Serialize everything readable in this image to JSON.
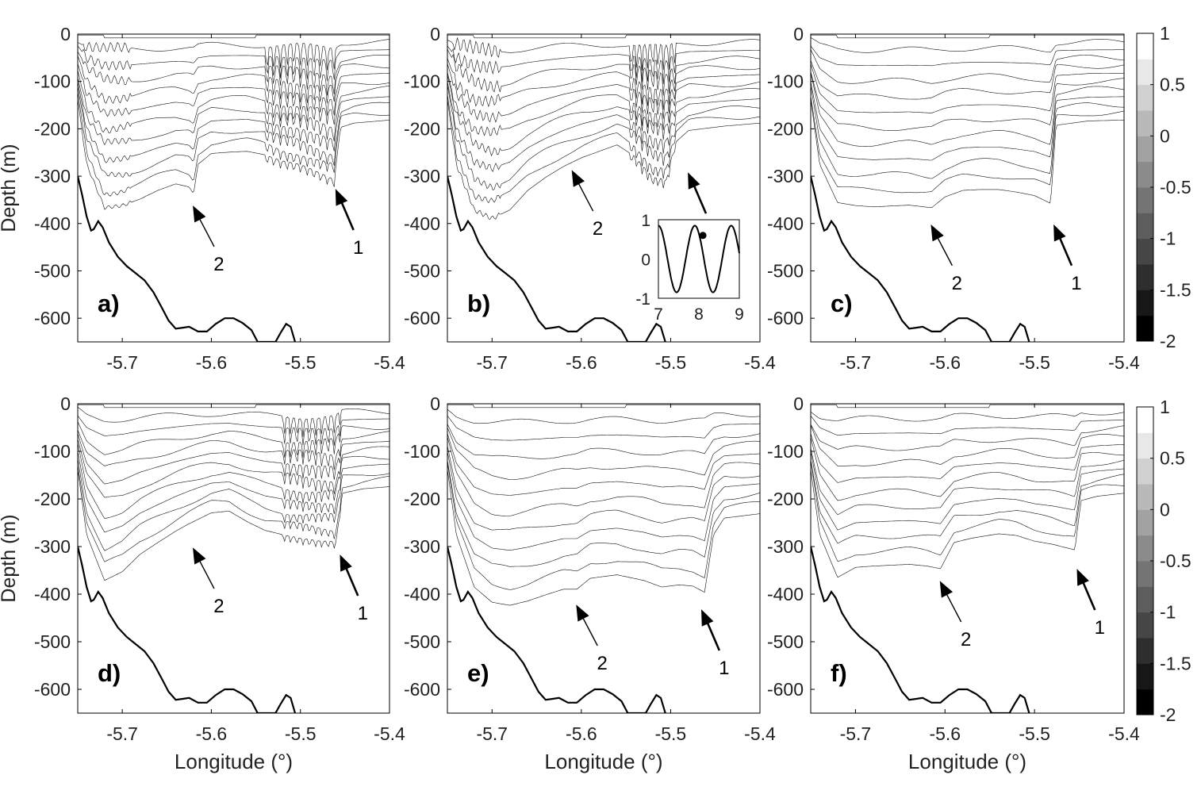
{
  "chart_data": [
    {
      "type": "heatmap",
      "panel_label": "a)",
      "xlabel": "",
      "ylabel": "Depth (m)",
      "xlim": [
        -5.75,
        -5.4
      ],
      "ylim": [
        -650,
        0
      ],
      "x_ticks": [
        "-5.7",
        "-5.6",
        "-5.5",
        "-5.4"
      ],
      "y_ticks": [
        "0",
        "-100",
        "-200",
        "-300",
        "-400",
        "-500",
        "-600"
      ],
      "annotations": [
        {
          "text": "2",
          "x": -5.62,
          "y": -365
        },
        {
          "text": "1",
          "x": -5.46,
          "y": -330
        }
      ]
    },
    {
      "type": "heatmap",
      "panel_label": "b)",
      "xlabel": "",
      "ylabel": "",
      "xlim": [
        -5.75,
        -5.4
      ],
      "ylim": [
        -650,
        0
      ],
      "x_ticks": [
        "-5.7",
        "-5.6",
        "-5.5",
        "-5.4"
      ],
      "y_ticks": [
        "0",
        "-100",
        "-200",
        "-300",
        "-400",
        "-500",
        "-600"
      ],
      "annotations": [
        {
          "text": "2",
          "x": -5.61,
          "y": -290
        },
        {
          "text": "1",
          "x": -5.48,
          "y": -295
        }
      ],
      "inset": {
        "type": "line",
        "x_ticks": [
          "7",
          "8",
          "9"
        ],
        "y_ticks": [
          "1",
          "0",
          "-1"
        ],
        "xlim": [
          7,
          9
        ],
        "ylim": [
          -1,
          1
        ],
        "marker": {
          "x": 8.1,
          "y": 0.6
        }
      }
    },
    {
      "type": "heatmap",
      "panel_label": "c)",
      "xlabel": "",
      "ylabel": "",
      "xlim": [
        -5.75,
        -5.4
      ],
      "ylim": [
        -650,
        0
      ],
      "x_ticks": [
        "-5.7",
        "-5.6",
        "-5.5",
        "-5.4"
      ],
      "y_ticks": [
        "0",
        "-100",
        "-200",
        "-300",
        "-400",
        "-500",
        "-600"
      ],
      "annotations": [
        {
          "text": "2",
          "x": -5.615,
          "y": -405
        },
        {
          "text": "1",
          "x": -5.478,
          "y": -405
        }
      ]
    },
    {
      "type": "heatmap",
      "panel_label": "d)",
      "xlabel": "Longitude (°)",
      "ylabel": "Depth (m)",
      "xlim": [
        -5.75,
        -5.4
      ],
      "ylim": [
        -650,
        0
      ],
      "x_ticks": [
        "-5.7",
        "-5.6",
        "-5.5",
        "-5.4"
      ],
      "y_ticks": [
        "0",
        "-100",
        "-200",
        "-300",
        "-400",
        "-500",
        "-600"
      ],
      "annotations": [
        {
          "text": "2",
          "x": -5.62,
          "y": -305
        },
        {
          "text": "1",
          "x": -5.455,
          "y": -320
        }
      ]
    },
    {
      "type": "heatmap",
      "panel_label": "e)",
      "xlabel": "Longitude (°)",
      "ylabel": "",
      "xlim": [
        -5.75,
        -5.4
      ],
      "ylim": [
        -650,
        0
      ],
      "x_ticks": [
        "-5.7",
        "-5.6",
        "-5.5",
        "-5.4"
      ],
      "y_ticks": [
        "0",
        "-100",
        "-200",
        "-300",
        "-400",
        "-500",
        "-600"
      ],
      "annotations": [
        {
          "text": "2",
          "x": -5.605,
          "y": -425
        },
        {
          "text": "1",
          "x": -5.465,
          "y": -435
        }
      ]
    },
    {
      "type": "heatmap",
      "panel_label": "f)",
      "xlabel": "Longitude (°)",
      "ylabel": "",
      "xlim": [
        -5.75,
        -5.4
      ],
      "ylim": [
        -650,
        0
      ],
      "x_ticks": [
        "-5.7",
        "-5.6",
        "-5.5",
        "-5.4"
      ],
      "y_ticks": [
        "0",
        "-100",
        "-200",
        "-300",
        "-400",
        "-500",
        "-600"
      ],
      "annotations": [
        {
          "text": "2",
          "x": -5.605,
          "y": -375
        },
        {
          "text": "1",
          "x": -5.452,
          "y": -350
        }
      ]
    }
  ],
  "colorbar": {
    "levels": [
      -2,
      -1.75,
      -1.5,
      -1.25,
      -1,
      -0.75,
      -0.5,
      -0.25,
      0,
      0.25,
      0.5,
      0.75,
      1
    ],
    "tick_labels": [
      "1",
      "0.5",
      "0",
      "-0.5",
      "-1",
      "-1.5",
      "-2"
    ],
    "color_dark": "#000000",
    "color_light": "#ffffff"
  }
}
